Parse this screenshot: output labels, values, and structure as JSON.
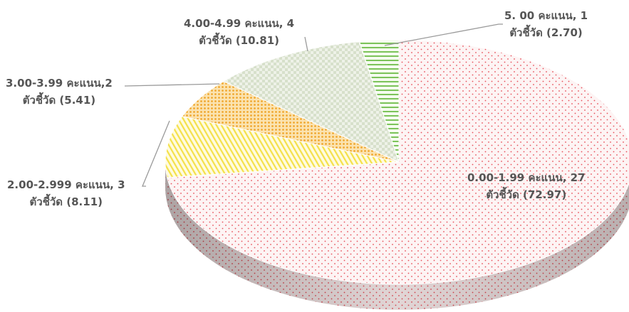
{
  "chart_data": {
    "type": "pie",
    "title": "",
    "slices": [
      {
        "label_line1": "0.00-1.99 คะแนน, 27",
        "label_line2": "ตัวชี้วัด (72.97)",
        "count": 27,
        "percent": 72.97,
        "color": "#e8505b",
        "pattern": "dots"
      },
      {
        "label_line1": "2.00-2.999 คะแนน, 3",
        "label_line2": "ตัวชี้วัด  (8.11)",
        "count": 3,
        "percent": 8.11,
        "color": "#f4e14a",
        "pattern": "diagonal-stripes"
      },
      {
        "label_line1": "3.00-3.99 คะแนน,2",
        "label_line2": "ตัวชี้วัด (5.41)",
        "count": 2,
        "percent": 5.41,
        "color": "#f0a830",
        "pattern": "dense-dots"
      },
      {
        "label_line1": "4.00-4.99 คะแนน, 4",
        "label_line2": "ตัวชี้วัด (10.81)",
        "count": 4,
        "percent": 10.81,
        "color": "#c9d6b8",
        "pattern": "checker"
      },
      {
        "label_line1": "5. 00  คะแนน, 1",
        "label_line2": "ตัวชี้วัด (2.70)",
        "count": 1,
        "percent": 2.7,
        "color": "#7cc35a",
        "pattern": "horizontal-stripes"
      }
    ],
    "legend": "none",
    "grid": false,
    "style": "3d-exploded-none"
  }
}
